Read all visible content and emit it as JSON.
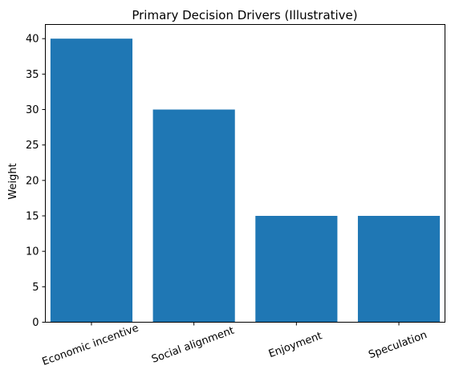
{
  "chart_data": {
    "type": "bar",
    "title": "Primary Decision Drivers (Illustrative)",
    "xlabel": "",
    "ylabel": "Weight",
    "categories": [
      "Economic incentive",
      "Social alignment",
      "Enjoyment",
      "Speculation"
    ],
    "values": [
      40,
      30,
      15,
      15
    ],
    "ylim": [
      0,
      42
    ],
    "yticks": [
      0,
      5,
      10,
      15,
      20,
      25,
      30,
      35,
      40
    ],
    "bar_color": "#1f77b4",
    "xtick_rotation_deg": 20,
    "grid": false,
    "legend": "none"
  }
}
